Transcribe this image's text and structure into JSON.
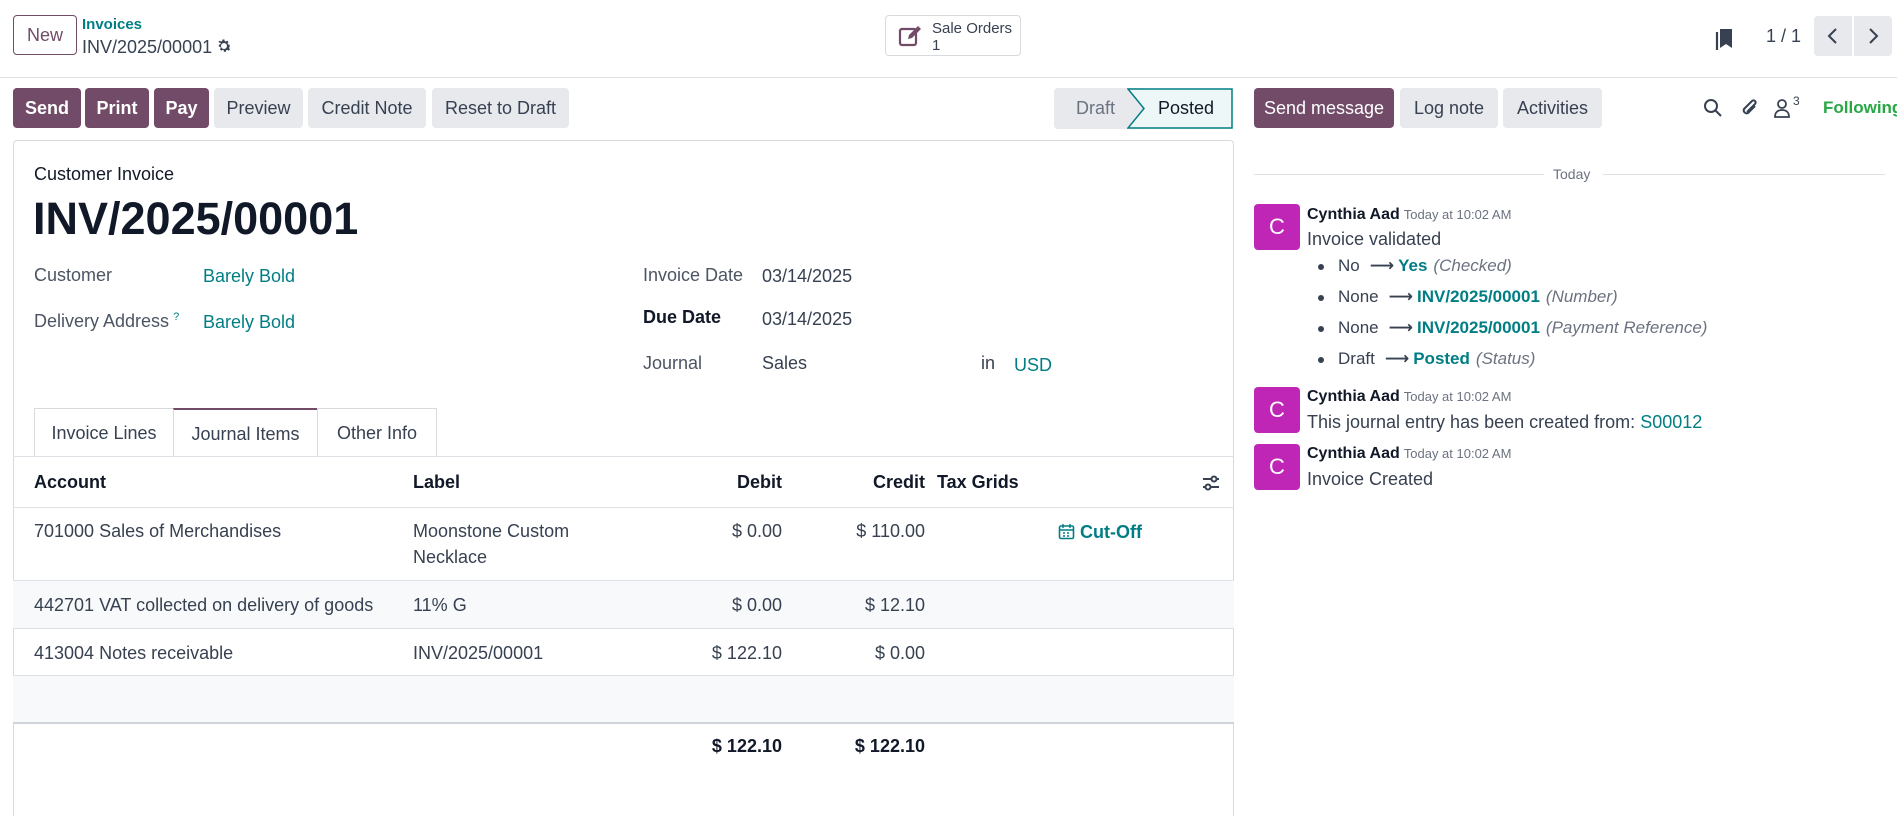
{
  "topbar": {
    "new_label": "New",
    "breadcrumb_parent": "Invoices",
    "record_name": "INV/2025/00001",
    "smart_button_label": "Sale Orders",
    "smart_button_count": "1",
    "pager": "1 / 1"
  },
  "actions": {
    "send": "Send",
    "print": "Print",
    "pay": "Pay",
    "preview": "Preview",
    "credit_note": "Credit Note",
    "reset": "Reset to Draft"
  },
  "statusbar": {
    "draft": "Draft",
    "posted": "Posted"
  },
  "chatter_buttons": {
    "send_message": "Send message",
    "log_note": "Log note",
    "activities": "Activities",
    "followers_count": "3",
    "following": "Following"
  },
  "form": {
    "doc_type": "Customer Invoice",
    "number": "INV/2025/00001",
    "customer_label": "Customer",
    "customer_value": "Barely Bold",
    "delivery_label": "Delivery Address",
    "delivery_help": "?",
    "delivery_value": "Barely Bold",
    "invoice_date_label": "Invoice Date",
    "invoice_date_value": "03/14/2025",
    "due_date_label": "Due Date",
    "due_date_value": "03/14/2025",
    "journal_label": "Journal",
    "journal_value": "Sales",
    "in_label": "in",
    "currency": "USD"
  },
  "tabs": [
    "Invoice Lines",
    "Journal Items",
    "Other Info"
  ],
  "table": {
    "headers": {
      "account": "Account",
      "label": "Label",
      "debit": "Debit",
      "credit": "Credit",
      "tax_grids": "Tax Grids"
    },
    "rows": [
      {
        "account": "701000 Sales of Merchandises",
        "label_line1": "Moonstone Custom",
        "label_line2": "Necklace",
        "debit": "$ 0.00",
        "credit": "$ 110.00",
        "cutoff": "Cut-Off"
      },
      {
        "account": "442701 VAT collected on delivery of goods",
        "label": "11% G",
        "debit": "$ 0.00",
        "credit": "$ 12.10"
      },
      {
        "account": "413004 Notes receivable",
        "label": "INV/2025/00001",
        "debit": "$ 122.10",
        "credit": "$ 0.00"
      }
    ],
    "totals": {
      "debit": "$ 122.10",
      "credit": "$ 122.10"
    }
  },
  "chatter": {
    "separator": "Today",
    "messages": [
      {
        "author": "Cynthia Aad",
        "time": "Today at 10:02 AM",
        "initial": "C",
        "body": "Invoice validated",
        "changes": [
          {
            "old": "No",
            "new": "Yes",
            "field": "(Checked)"
          },
          {
            "old": "None",
            "new": "INV/2025/00001",
            "field": "(Number)"
          },
          {
            "old": "None",
            "new": "INV/2025/00001",
            "field": "(Payment Reference)"
          },
          {
            "old": "Draft",
            "new": "Posted",
            "field": "(Status)"
          }
        ]
      },
      {
        "author": "Cynthia Aad",
        "time": "Today at 10:02 AM",
        "initial": "C",
        "body": "This journal entry has been created from:",
        "link": "S00012"
      },
      {
        "author": "Cynthia Aad",
        "time": "Today at 10:02 AM",
        "initial": "C",
        "body": "Invoice Created"
      }
    ]
  },
  "colors": {
    "primary": "#714b67",
    "teal": "#017e84",
    "avatar": "#c026b6",
    "following": "#28a745"
  }
}
